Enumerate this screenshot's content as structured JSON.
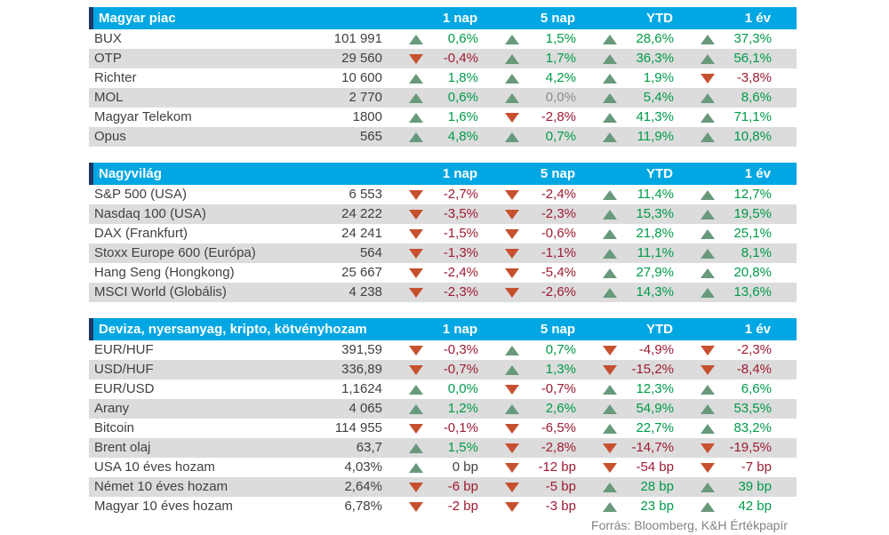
{
  "source_note": "Forrás: Bloomberg, K&H Értékpapír",
  "columns": [
    "1 nap",
    "5 nap",
    "YTD",
    "1 év"
  ],
  "colors": {
    "header_bg": "#00a7e2",
    "header_accent": "#1d3866",
    "alt_row_bg": "#dcdcdc",
    "text_dark": "#414042",
    "positive_text": "#009b48",
    "negative_text": "#9e1b32",
    "neutral_gray_text": "#8a8c8e",
    "up_triangle": "#68997b",
    "down_triangle": "#c7502f"
  },
  "tables": [
    {
      "title": "Magyar piac",
      "rows": [
        {
          "name": "BUX",
          "value": "101 991",
          "changes": [
            {
              "dir": "up",
              "text": "0,6%",
              "tone": "up"
            },
            {
              "dir": "up",
              "text": "1,5%",
              "tone": "up"
            },
            {
              "dir": "up",
              "text": "28,6%",
              "tone": "up"
            },
            {
              "dir": "up",
              "text": "37,3%",
              "tone": "up"
            }
          ]
        },
        {
          "name": "OTP",
          "value": "29 560",
          "changes": [
            {
              "dir": "down",
              "text": "-0,4%",
              "tone": "down"
            },
            {
              "dir": "up",
              "text": "1,7%",
              "tone": "up"
            },
            {
              "dir": "up",
              "text": "36,3%",
              "tone": "up"
            },
            {
              "dir": "up",
              "text": "56,1%",
              "tone": "up"
            }
          ]
        },
        {
          "name": "Richter",
          "value": "10 600",
          "changes": [
            {
              "dir": "up",
              "text": "1,8%",
              "tone": "up"
            },
            {
              "dir": "up",
              "text": "4,2%",
              "tone": "up"
            },
            {
              "dir": "up",
              "text": "1,9%",
              "tone": "up"
            },
            {
              "dir": "down",
              "text": "-3,8%",
              "tone": "down"
            }
          ]
        },
        {
          "name": "MOL",
          "value": "2 770",
          "changes": [
            {
              "dir": "up",
              "text": "0,6%",
              "tone": "up"
            },
            {
              "dir": "up",
              "text": "0,0%",
              "tone": "gray"
            },
            {
              "dir": "up",
              "text": "5,4%",
              "tone": "up"
            },
            {
              "dir": "up",
              "text": "8,6%",
              "tone": "up"
            }
          ]
        },
        {
          "name": "Magyar Telekom",
          "value": "1800",
          "changes": [
            {
              "dir": "up",
              "text": "1,6%",
              "tone": "up"
            },
            {
              "dir": "down",
              "text": "-2,8%",
              "tone": "down"
            },
            {
              "dir": "up",
              "text": "41,3%",
              "tone": "up"
            },
            {
              "dir": "up",
              "text": "71,1%",
              "tone": "up"
            }
          ]
        },
        {
          "name": "Opus",
          "value": "565",
          "changes": [
            {
              "dir": "up",
              "text": "4,8%",
              "tone": "up"
            },
            {
              "dir": "up",
              "text": "0,7%",
              "tone": "up"
            },
            {
              "dir": "up",
              "text": "11,9%",
              "tone": "up"
            },
            {
              "dir": "up",
              "text": "10,8%",
              "tone": "up"
            }
          ]
        }
      ]
    },
    {
      "title": "Nagyvilág",
      "rows": [
        {
          "name": "S&P 500 (USA)",
          "value": "6 553",
          "changes": [
            {
              "dir": "down",
              "text": "-2,7%",
              "tone": "down"
            },
            {
              "dir": "down",
              "text": "-2,4%",
              "tone": "down"
            },
            {
              "dir": "up",
              "text": "11,4%",
              "tone": "up"
            },
            {
              "dir": "up",
              "text": "12,7%",
              "tone": "up"
            }
          ]
        },
        {
          "name": "Nasdaq 100 (USA)",
          "value": "24 222",
          "changes": [
            {
              "dir": "down",
              "text": "-3,5%",
              "tone": "down"
            },
            {
              "dir": "down",
              "text": "-2,3%",
              "tone": "down"
            },
            {
              "dir": "up",
              "text": "15,3%",
              "tone": "up"
            },
            {
              "dir": "up",
              "text": "19,5%",
              "tone": "up"
            }
          ]
        },
        {
          "name": "DAX (Frankfurt)",
          "value": "24 241",
          "changes": [
            {
              "dir": "down",
              "text": "-1,5%",
              "tone": "down"
            },
            {
              "dir": "down",
              "text": "-0,6%",
              "tone": "down"
            },
            {
              "dir": "up",
              "text": "21,8%",
              "tone": "up"
            },
            {
              "dir": "up",
              "text": "25,1%",
              "tone": "up"
            }
          ]
        },
        {
          "name": "Stoxx Europe 600 (Európa)",
          "value": "564",
          "changes": [
            {
              "dir": "down",
              "text": "-1,3%",
              "tone": "down"
            },
            {
              "dir": "down",
              "text": "-1,1%",
              "tone": "down"
            },
            {
              "dir": "up",
              "text": "11,1%",
              "tone": "up"
            },
            {
              "dir": "up",
              "text": "8,1%",
              "tone": "up"
            }
          ]
        },
        {
          "name": "Hang Seng (Hongkong)",
          "value": "25 667",
          "changes": [
            {
              "dir": "down",
              "text": "-2,4%",
              "tone": "down"
            },
            {
              "dir": "down",
              "text": "-5,4%",
              "tone": "down"
            },
            {
              "dir": "up",
              "text": "27,9%",
              "tone": "up"
            },
            {
              "dir": "up",
              "text": "20,8%",
              "tone": "up"
            }
          ]
        },
        {
          "name": "MSCI World (Globális)",
          "value": "4 238",
          "changes": [
            {
              "dir": "down",
              "text": "-2,3%",
              "tone": "down"
            },
            {
              "dir": "down",
              "text": "-2,6%",
              "tone": "down"
            },
            {
              "dir": "up",
              "text": "14,3%",
              "tone": "up"
            },
            {
              "dir": "up",
              "text": "13,6%",
              "tone": "up"
            }
          ]
        }
      ]
    },
    {
      "title": "Deviza, nyersanyag, kripto, kötvényhozam",
      "rows": [
        {
          "name": "EUR/HUF",
          "value": "391,59",
          "changes": [
            {
              "dir": "down",
              "text": "-0,3%",
              "tone": "down"
            },
            {
              "dir": "up",
              "text": "0,7%",
              "tone": "up"
            },
            {
              "dir": "down",
              "text": "-4,9%",
              "tone": "down"
            },
            {
              "dir": "down",
              "text": "-2,3%",
              "tone": "down"
            }
          ]
        },
        {
          "name": "USD/HUF",
          "value": "336,89",
          "changes": [
            {
              "dir": "down",
              "text": "-0,7%",
              "tone": "down"
            },
            {
              "dir": "up",
              "text": "1,3%",
              "tone": "up"
            },
            {
              "dir": "down",
              "text": "-15,2%",
              "tone": "down"
            },
            {
              "dir": "down",
              "text": "-8,4%",
              "tone": "down"
            }
          ]
        },
        {
          "name": "EUR/USD",
          "value": "1,1624",
          "changes": [
            {
              "dir": "up",
              "text": "0,0%",
              "tone": "up"
            },
            {
              "dir": "down",
              "text": "-0,7%",
              "tone": "down"
            },
            {
              "dir": "up",
              "text": "12,3%",
              "tone": "up"
            },
            {
              "dir": "up",
              "text": "6,6%",
              "tone": "up"
            }
          ]
        },
        {
          "name": "Arany",
          "value": "4 065",
          "changes": [
            {
              "dir": "up",
              "text": "1,2%",
              "tone": "up"
            },
            {
              "dir": "up",
              "text": "2,6%",
              "tone": "up"
            },
            {
              "dir": "up",
              "text": "54,9%",
              "tone": "up"
            },
            {
              "dir": "up",
              "text": "53,5%",
              "tone": "up"
            }
          ]
        },
        {
          "name": "Bitcoin",
          "value": "114 955",
          "changes": [
            {
              "dir": "down",
              "text": "-0,1%",
              "tone": "down"
            },
            {
              "dir": "down",
              "text": "-6,5%",
              "tone": "down"
            },
            {
              "dir": "up",
              "text": "22,7%",
              "tone": "up"
            },
            {
              "dir": "up",
              "text": "83,2%",
              "tone": "up"
            }
          ]
        },
        {
          "name": "Brent olaj",
          "value": "63,7",
          "changes": [
            {
              "dir": "up",
              "text": "1,5%",
              "tone": "up"
            },
            {
              "dir": "down",
              "text": "-2,8%",
              "tone": "down"
            },
            {
              "dir": "down",
              "text": "-14,7%",
              "tone": "down"
            },
            {
              "dir": "down",
              "text": "-19,5%",
              "tone": "down"
            }
          ]
        },
        {
          "name": "USA 10 éves hozam",
          "value": "4,03%",
          "changes": [
            {
              "dir": "up",
              "text": "0 bp",
              "tone": "dark"
            },
            {
              "dir": "down",
              "text": "-12 bp",
              "tone": "down"
            },
            {
              "dir": "down",
              "text": "-54 bp",
              "tone": "down"
            },
            {
              "dir": "down",
              "text": "-7 bp",
              "tone": "down"
            }
          ]
        },
        {
          "name": "Német 10 éves hozam",
          "value": "2,64%",
          "changes": [
            {
              "dir": "down",
              "text": "-6 bp",
              "tone": "down"
            },
            {
              "dir": "down",
              "text": "-5 bp",
              "tone": "down"
            },
            {
              "dir": "up",
              "text": "28 bp",
              "tone": "up"
            },
            {
              "dir": "up",
              "text": "39 bp",
              "tone": "up"
            }
          ]
        },
        {
          "name": "Magyar 10 éves hozam",
          "value": "6,78%",
          "changes": [
            {
              "dir": "down",
              "text": "-2 bp",
              "tone": "down"
            },
            {
              "dir": "down",
              "text": "-3 bp",
              "tone": "down"
            },
            {
              "dir": "up",
              "text": "23 bp",
              "tone": "up"
            },
            {
              "dir": "up",
              "text": "42 bp",
              "tone": "up"
            }
          ]
        }
      ]
    }
  ]
}
